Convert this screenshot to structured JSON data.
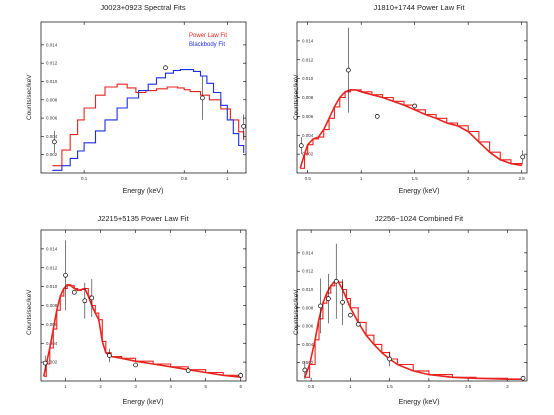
{
  "chart_data": [
    {
      "type": "line",
      "title": "J0023+0923 Spectral Fits",
      "xlabel": "Energy (keV)",
      "ylabel": "Counts/sec/keV",
      "xscale": "log",
      "xlim": [
        0.05,
        1.35
      ],
      "ylim": [
        0,
        0.0165
      ],
      "xticks": [
        {
          "v": 0.1,
          "label": "0.1"
        },
        {
          "v": 0.5,
          "label": "0.5"
        },
        {
          "v": 1.0,
          "label": "1"
        }
      ],
      "yticks": [
        {
          "v": 0.002,
          "label": "0.002"
        },
        {
          "v": 0.004,
          "label": "0.004"
        },
        {
          "v": 0.006,
          "label": "0.006"
        },
        {
          "v": 0.008,
          "label": "0.008"
        },
        {
          "v": 0.01,
          "label": "0.010"
        },
        {
          "v": 0.012,
          "label": "0.012"
        },
        {
          "v": 0.014,
          "label": "0.014"
        }
      ],
      "legend": {
        "position": "top-right"
      },
      "series": [
        {
          "name": "Power Law Fit",
          "color": "#e8231e",
          "style": "step",
          "x": [
            0.06,
            0.07,
            0.08,
            0.09,
            0.1,
            0.12,
            0.14,
            0.17,
            0.2,
            0.23,
            0.27,
            0.32,
            0.38,
            0.45,
            0.5,
            0.55,
            0.65,
            0.75,
            0.9,
            1.05,
            1.2,
            1.3
          ],
          "y": [
            0.0008,
            0.0025,
            0.0042,
            0.0058,
            0.0071,
            0.0085,
            0.0094,
            0.0097,
            0.0093,
            0.0088,
            0.009,
            0.0092,
            0.0094,
            0.0093,
            0.0091,
            0.0089,
            0.0085,
            0.008,
            0.007,
            0.0058,
            0.0045,
            0.0036
          ]
        },
        {
          "name": "Blackbody Fit",
          "color": "#1a2ee0",
          "style": "step",
          "x": [
            0.06,
            0.07,
            0.08,
            0.09,
            0.1,
            0.12,
            0.14,
            0.17,
            0.2,
            0.24,
            0.28,
            0.32,
            0.37,
            0.42,
            0.47,
            0.52,
            0.58,
            0.65,
            0.72,
            0.8,
            0.9,
            1.0,
            1.1,
            1.2,
            1.3
          ],
          "y": [
            0.0003,
            0.0008,
            0.0016,
            0.0024,
            0.0033,
            0.0046,
            0.0058,
            0.0071,
            0.0082,
            0.009,
            0.0097,
            0.0104,
            0.0109,
            0.0112,
            0.0113,
            0.0113,
            0.0111,
            0.0106,
            0.0098,
            0.0088,
            0.0074,
            0.0058,
            0.0043,
            0.003,
            0.0022
          ]
        }
      ],
      "points": [
        {
          "x": 0.062,
          "y": 0.0034,
          "err": 0.0012
        },
        {
          "x": 0.37,
          "y": 0.0115,
          "err": 0
        },
        {
          "x": 0.67,
          "y": 0.0082,
          "err": 0.0024
        },
        {
          "x": 1.3,
          "y": 0.0051,
          "err": 0.0013
        }
      ]
    },
    {
      "type": "line",
      "title": "J1810+1744 Power Law Fit",
      "xlabel": "Energy (keV)",
      "ylabel": "Counts/sec/keV",
      "xlim": [
        0.4,
        2.55
      ],
      "ylim": [
        0,
        0.016
      ],
      "xticks": [
        {
          "v": 0.5,
          "label": "0.5"
        },
        {
          "v": 1.0,
          "label": "1"
        },
        {
          "v": 1.5,
          "label": "1.5"
        },
        {
          "v": 2.0,
          "label": "2"
        },
        {
          "v": 2.5,
          "label": "2.5"
        }
      ],
      "yticks": [
        {
          "v": 0.002,
          "label": "0.002"
        },
        {
          "v": 0.004,
          "label": "0.004"
        },
        {
          "v": 0.006,
          "label": "0.006"
        },
        {
          "v": 0.008,
          "label": "0.008"
        },
        {
          "v": 0.01,
          "label": "0.010"
        },
        {
          "v": 0.012,
          "label": "0.012"
        },
        {
          "v": 0.014,
          "label": "0.014"
        }
      ],
      "series": [
        {
          "name": "",
          "color": "#e8231e",
          "style": "smooth",
          "x": [
            0.43,
            0.47,
            0.5,
            0.55,
            0.6,
            0.65,
            0.7,
            0.75,
            0.8,
            0.85,
            0.9,
            0.95,
            1.0,
            1.1,
            1.2,
            1.3,
            1.4,
            1.5,
            1.6,
            1.7,
            1.8,
            1.9,
            2.0,
            2.1,
            2.2,
            2.3,
            2.4,
            2.5
          ],
          "y": [
            0.0005,
            0.002,
            0.003,
            0.0036,
            0.0038,
            0.0046,
            0.0058,
            0.007,
            0.008,
            0.0086,
            0.0088,
            0.0088,
            0.0086,
            0.0083,
            0.008,
            0.0076,
            0.0072,
            0.0067,
            0.0062,
            0.0058,
            0.0053,
            0.005,
            0.0044,
            0.0033,
            0.0022,
            0.0014,
            0.001,
            0.0008
          ]
        },
        {
          "name": "",
          "color": "#e8231e",
          "style": "step",
          "x": [
            0.43,
            0.47,
            0.5,
            0.55,
            0.6,
            0.65,
            0.7,
            0.75,
            0.8,
            0.85,
            0.9,
            0.95,
            1.0,
            1.1,
            1.2,
            1.3,
            1.4,
            1.5,
            1.6,
            1.7,
            1.8,
            1.9,
            2.0,
            2.1,
            2.2,
            2.3,
            2.4,
            2.5
          ],
          "y": [
            0.0005,
            0.002,
            0.003,
            0.0036,
            0.0038,
            0.0046,
            0.0058,
            0.007,
            0.008,
            0.0086,
            0.0088,
            0.0088,
            0.0086,
            0.0083,
            0.008,
            0.0076,
            0.0072,
            0.0067,
            0.0062,
            0.0058,
            0.0053,
            0.005,
            0.0044,
            0.0033,
            0.0022,
            0.0014,
            0.001,
            0.0008
          ]
        }
      ],
      "points": [
        {
          "x": 0.44,
          "y": 0.0029,
          "err": 0.0009
        },
        {
          "x": 0.88,
          "y": 0.0109,
          "err": 0.0045
        },
        {
          "x": 1.15,
          "y": 0.006,
          "err": 0
        },
        {
          "x": 1.5,
          "y": 0.0071,
          "err": 0
        },
        {
          "x": 2.51,
          "y": 0.0017,
          "err": 0.0007
        }
      ]
    },
    {
      "type": "line",
      "title": "J2215+5135 Power Law Fit",
      "xlabel": "Energy (keV)",
      "ylabel": "Counts/sec/keV",
      "xlim": [
        0.3,
        6.15
      ],
      "ylim": [
        0,
        0.016
      ],
      "xticks": [
        {
          "v": 1,
          "label": "1"
        },
        {
          "v": 2,
          "label": "2"
        },
        {
          "v": 3,
          "label": "3"
        },
        {
          "v": 4,
          "label": "4"
        },
        {
          "v": 5,
          "label": "5"
        },
        {
          "v": 6,
          "label": "6"
        }
      ],
      "yticks": [
        {
          "v": 0.002,
          "label": "0.002"
        },
        {
          "v": 0.004,
          "label": "0.004"
        },
        {
          "v": 0.006,
          "label": "0.006"
        },
        {
          "v": 0.008,
          "label": "0.008"
        },
        {
          "v": 0.01,
          "label": "0.010"
        },
        {
          "v": 0.012,
          "label": "0.012"
        },
        {
          "v": 0.014,
          "label": "0.014"
        }
      ],
      "series": [
        {
          "name": "",
          "color": "#e8231e",
          "style": "smooth",
          "x": [
            0.38,
            0.45,
            0.55,
            0.65,
            0.75,
            0.85,
            0.95,
            1.05,
            1.15,
            1.25,
            1.35,
            1.45,
            1.55,
            1.65,
            1.75,
            1.85,
            1.95,
            2.05,
            2.15,
            2.3,
            2.6,
            3.0,
            3.5,
            4.0,
            4.5,
            5.0,
            5.5,
            6.0
          ],
          "y": [
            0.0005,
            0.0018,
            0.0035,
            0.0055,
            0.0075,
            0.009,
            0.0098,
            0.0102,
            0.0101,
            0.0098,
            0.0096,
            0.0097,
            0.0098,
            0.009,
            0.008,
            0.0072,
            0.0065,
            0.0042,
            0.003,
            0.0026,
            0.0024,
            0.0021,
            0.0018,
            0.0015,
            0.0012,
            0.0009,
            0.0006,
            0.0004
          ]
        },
        {
          "name": "",
          "color": "#e8231e",
          "style": "step",
          "x": [
            0.38,
            0.45,
            0.55,
            0.65,
            0.75,
            0.85,
            0.95,
            1.05,
            1.15,
            1.25,
            1.35,
            1.45,
            1.55,
            1.65,
            1.75,
            1.85,
            1.95,
            2.05,
            2.15,
            2.3,
            2.6,
            3.0,
            3.5,
            4.0,
            4.5,
            5.0,
            5.5,
            6.0
          ],
          "y": [
            0.0005,
            0.0018,
            0.0035,
            0.0055,
            0.0075,
            0.009,
            0.0098,
            0.0102,
            0.0101,
            0.0098,
            0.0096,
            0.0097,
            0.0098,
            0.009,
            0.008,
            0.0072,
            0.0065,
            0.0042,
            0.003,
            0.0026,
            0.0024,
            0.0021,
            0.0018,
            0.0015,
            0.0012,
            0.0009,
            0.0006,
            0.0004
          ]
        }
      ],
      "points": [
        {
          "x": 0.42,
          "y": 0.0019,
          "err": 0.0008
        },
        {
          "x": 1.0,
          "y": 0.0112,
          "err": 0.0037
        },
        {
          "x": 1.25,
          "y": 0.0094,
          "err": 0
        },
        {
          "x": 1.55,
          "y": 0.0085,
          "err": 0.0019
        },
        {
          "x": 1.75,
          "y": 0.0088,
          "err": 0.002
        },
        {
          "x": 2.25,
          "y": 0.0027,
          "err": 0.0007
        },
        {
          "x": 3.0,
          "y": 0.0017,
          "err": 0
        },
        {
          "x": 4.5,
          "y": 0.0011,
          "err": 0
        },
        {
          "x": 6.0,
          "y": 0.0006,
          "err": 0.0003
        }
      ]
    },
    {
      "type": "line",
      "title": "J2256−1024 Combined Fit",
      "xlabel": "Energy (keV)",
      "ylabel": "Counts/sec/keV",
      "xlim": [
        0.32,
        3.25
      ],
      "ylim": [
        0,
        0.0165
      ],
      "xticks": [
        {
          "v": 0.5,
          "label": "0.5"
        },
        {
          "v": 1.0,
          "label": "1"
        },
        {
          "v": 1.5,
          "label": "1.5"
        },
        {
          "v": 2.0,
          "label": "2"
        },
        {
          "v": 2.5,
          "label": "2.5"
        },
        {
          "v": 3.0,
          "label": "3"
        }
      ],
      "yticks": [
        {
          "v": 0.002,
          "label": "0.002"
        },
        {
          "v": 0.004,
          "label": "0.004"
        },
        {
          "v": 0.006,
          "label": "0.006"
        },
        {
          "v": 0.008,
          "label": "0.008"
        },
        {
          "v": 0.01,
          "label": "0.010"
        },
        {
          "v": 0.012,
          "label": "0.012"
        },
        {
          "v": 0.014,
          "label": "0.014"
        }
      ],
      "series": [
        {
          "name": "",
          "color": "#e8231e",
          "style": "smooth",
          "x": [
            0.42,
            0.48,
            0.55,
            0.6,
            0.65,
            0.7,
            0.75,
            0.8,
            0.85,
            0.9,
            0.95,
            1.0,
            1.1,
            1.2,
            1.3,
            1.4,
            1.5,
            1.6,
            1.8,
            2.0,
            2.3,
            2.6,
            3.0,
            3.2
          ],
          "y": [
            0.0004,
            0.0018,
            0.0045,
            0.0068,
            0.0085,
            0.0096,
            0.0104,
            0.0109,
            0.0108,
            0.01,
            0.009,
            0.008,
            0.0064,
            0.005,
            0.004,
            0.0031,
            0.0024,
            0.0018,
            0.0011,
            0.0007,
            0.0004,
            0.0003,
            0.0002,
            0.0002
          ]
        },
        {
          "name": "",
          "color": "#e8231e",
          "style": "step",
          "x": [
            0.42,
            0.48,
            0.55,
            0.6,
            0.65,
            0.7,
            0.75,
            0.8,
            0.85,
            0.9,
            0.95,
            1.0,
            1.1,
            1.2,
            1.3,
            1.4,
            1.5,
            1.6,
            1.8,
            2.0,
            2.3,
            2.6,
            3.0,
            3.2
          ],
          "y": [
            0.0004,
            0.0018,
            0.0045,
            0.0068,
            0.0085,
            0.0096,
            0.0104,
            0.0109,
            0.0108,
            0.01,
            0.009,
            0.008,
            0.0064,
            0.005,
            0.004,
            0.0031,
            0.0024,
            0.0018,
            0.0011,
            0.0007,
            0.0004,
            0.0003,
            0.0002,
            0.0002
          ]
        }
      ],
      "points": [
        {
          "x": 0.42,
          "y": 0.0012,
          "err": 0.001
        },
        {
          "x": 0.62,
          "y": 0.0082,
          "err": 0.003
        },
        {
          "x": 0.72,
          "y": 0.009,
          "err": 0.0027
        },
        {
          "x": 0.82,
          "y": 0.0109,
          "err": 0.0041
        },
        {
          "x": 0.9,
          "y": 0.0086,
          "err": 0.0025
        },
        {
          "x": 1.0,
          "y": 0.0072,
          "err": 0
        },
        {
          "x": 1.1,
          "y": 0.0062,
          "err": 0
        },
        {
          "x": 1.5,
          "y": 0.0024,
          "err": 0.0008
        },
        {
          "x": 3.2,
          "y": 0.0003,
          "err": 0.0001
        }
      ]
    }
  ]
}
